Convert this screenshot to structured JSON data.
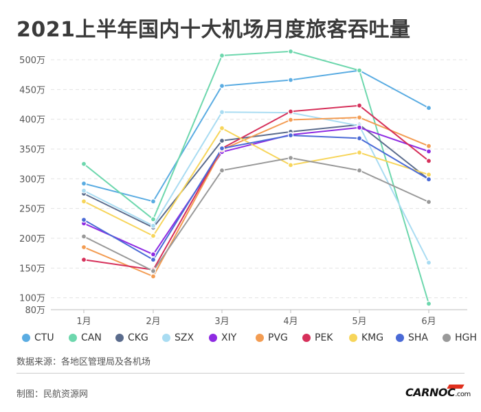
{
  "title": "2021上半年国内十大机场月度旅客吞吐量",
  "chart_data": {
    "type": "line",
    "title": "2021上半年国内十大机场月度旅客吞吐量",
    "categories": [
      "1月",
      "2月",
      "3月",
      "4月",
      "5月",
      "6月"
    ],
    "y_ticks": [
      80,
      100,
      150,
      200,
      250,
      300,
      350,
      400,
      450,
      500
    ],
    "y_tick_labels": [
      "80万",
      "100万",
      "150万",
      "200万",
      "250万",
      "300万",
      "350万",
      "400万",
      "450万",
      "500万"
    ],
    "ylim": [
      80,
      515
    ],
    "unit": "万",
    "grid": true,
    "legend_position": "bottom",
    "series": [
      {
        "name": "CTU",
        "color": "#5aace2",
        "values": [
          292,
          262,
          456,
          466,
          482,
          419
        ]
      },
      {
        "name": "CAN",
        "color": "#6dd7ad",
        "values": [
          325,
          232,
          507,
          514,
          482,
          90
        ]
      },
      {
        "name": "CKG",
        "color": "#5a6b8c",
        "values": [
          275,
          218,
          364,
          379,
          391,
          299
        ]
      },
      {
        "name": "SZX",
        "color": "#a9dcf2",
        "values": [
          280,
          221,
          412,
          411,
          389,
          159
        ]
      },
      {
        "name": "XIY",
        "color": "#8e2be2",
        "values": [
          225,
          173,
          345,
          374,
          386,
          346
        ]
      },
      {
        "name": "PVG",
        "color": "#f39c52",
        "values": [
          185,
          136,
          349,
          399,
          403,
          355
        ]
      },
      {
        "name": "PEK",
        "color": "#d6305a",
        "values": [
          164,
          147,
          351,
          413,
          423,
          330
        ]
      },
      {
        "name": "KMG",
        "color": "#f7d55a",
        "values": [
          262,
          204,
          385,
          323,
          344,
          307
        ]
      },
      {
        "name": "SHA",
        "color": "#4a6ad6",
        "values": [
          231,
          164,
          351,
          373,
          368,
          299
        ]
      },
      {
        "name": "HGH",
        "color": "#999999",
        "values": [
          203,
          145,
          314,
          335,
          314,
          261
        ]
      }
    ]
  },
  "footer": {
    "source": "数据来源：各地区管理局及各机场",
    "credit": "制图：民航资源网",
    "logo_text": "CARNOC",
    "logo_suffix": ".com"
  }
}
